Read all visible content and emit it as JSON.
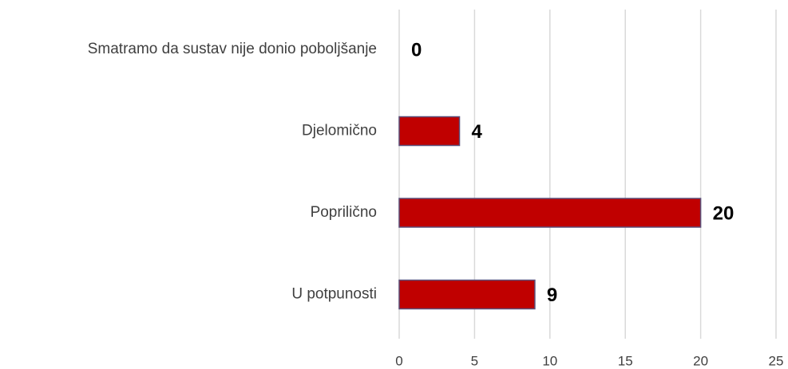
{
  "chart_data": {
    "type": "bar",
    "orientation": "horizontal",
    "categories": [
      "Smatramo da sustav nije donio poboljšanje",
      "Djelomično",
      "Poprilično",
      "U potpunosti"
    ],
    "values": [
      0,
      4,
      20,
      9
    ],
    "color": "#c00000",
    "edge_color": "#5a4f7a",
    "xlim": [
      0,
      25
    ],
    "xticks": [
      0,
      5,
      10,
      15,
      20,
      25
    ],
    "grid": true
  }
}
